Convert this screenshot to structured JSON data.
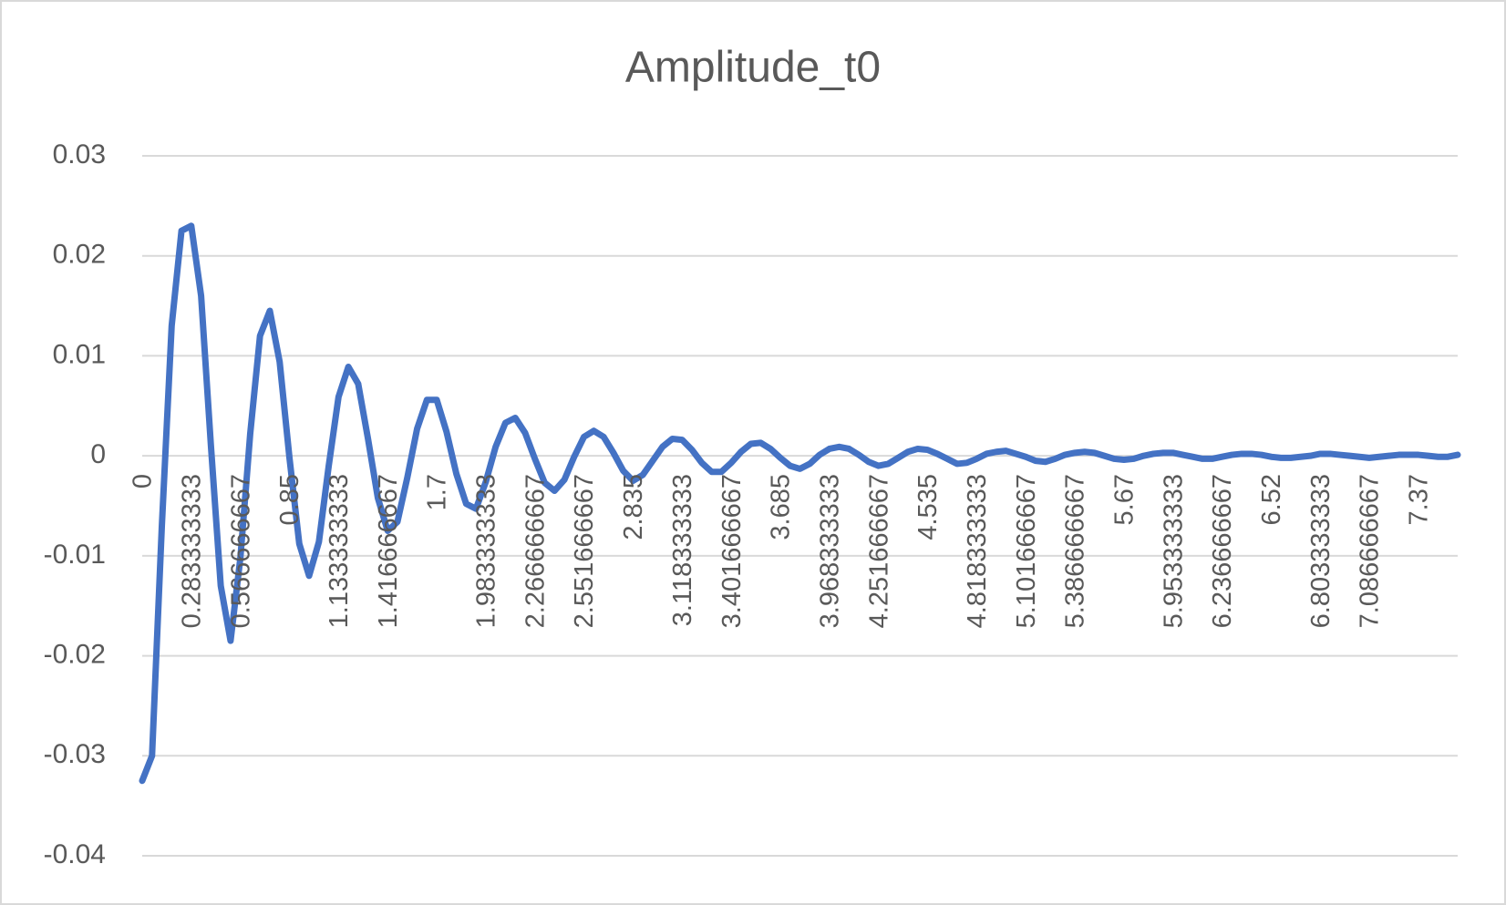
{
  "chart_data": {
    "type": "line",
    "title": "Amplitude_t0",
    "categories": [
      "0",
      null,
      null,
      null,
      null,
      "0.283333333",
      null,
      null,
      null,
      null,
      "0.566666667",
      null,
      null,
      null,
      null,
      "0.85",
      null,
      null,
      null,
      null,
      "1.133333333",
      null,
      null,
      null,
      null,
      "1.416666667",
      null,
      null,
      null,
      null,
      "1.7",
      null,
      null,
      null,
      null,
      "1.983333333",
      null,
      null,
      null,
      null,
      "2.266666667",
      null,
      null,
      null,
      null,
      "2.551666667",
      null,
      null,
      null,
      null,
      "2.835",
      null,
      null,
      null,
      null,
      "3.118333333",
      null,
      null,
      null,
      null,
      "3.401666667",
      null,
      null,
      null,
      null,
      "3.685",
      null,
      null,
      null,
      null,
      "3.968333333",
      null,
      null,
      null,
      null,
      "4.251666667",
      null,
      null,
      null,
      null,
      "4.535",
      null,
      null,
      null,
      null,
      "4.818333333",
      null,
      null,
      null,
      null,
      "5.101666667",
      null,
      null,
      null,
      null,
      "5.386666667",
      null,
      null,
      null,
      null,
      "5.67",
      null,
      null,
      null,
      null,
      "5.953333333",
      null,
      null,
      null,
      null,
      "6.236666667",
      null,
      null,
      null,
      null,
      "6.52",
      null,
      null,
      null,
      null,
      "6.803333333",
      null,
      null,
      null,
      null,
      "7.086666667",
      null,
      null,
      null,
      null,
      "7.37",
      null,
      null,
      null,
      null
    ],
    "values": [
      -0.0325,
      -0.03,
      -0.007,
      0.013,
      0.0225,
      0.023,
      0.016,
      0.001,
      -0.013,
      -0.0185,
      -0.0102,
      0.0022,
      0.012,
      0.0145,
      0.0094,
      -0.0002,
      -0.0088,
      -0.012,
      -0.0086,
      -0.001,
      0.0059,
      0.0089,
      0.0072,
      0.0017,
      -0.0042,
      -0.0075,
      -0.0066,
      -0.0022,
      0.0027,
      0.0056,
      0.0056,
      0.0024,
      -0.0018,
      -0.0048,
      -0.0053,
      -0.0026,
      0.0009,
      0.0033,
      0.0038,
      0.0023,
      -0.0003,
      -0.0027,
      -0.0035,
      -0.0024,
      -0.0001,
      0.0019,
      0.0025,
      0.0019,
      0.0003,
      -0.0015,
      -0.0025,
      -0.0019,
      -0.0005,
      0.0009,
      0.0017,
      0.0016,
      0.0006,
      -0.0007,
      -0.0016,
      -0.0016,
      -0.0007,
      0.0004,
      0.0012,
      0.0013,
      0.0007,
      -0.0002,
      -0.001,
      -0.0013,
      -0.0008,
      0.0001,
      0.0007,
      0.0009,
      0.0007,
      0.0001,
      -0.0006,
      -0.001,
      -0.0008,
      -0.0002,
      0.0004,
      0.0007,
      0.0006,
      0.0002,
      -0.0003,
      -0.0008,
      -0.0007,
      -0.0003,
      0.0002,
      0.0004,
      0.0005,
      0.0002,
      -0.0001,
      -0.0005,
      -0.0006,
      -0.0003,
      0.0001,
      0.0003,
      0.0004,
      0.0003,
      0,
      -0.0003,
      -0.0004,
      -0.0003,
      0,
      0.0002,
      0.0003,
      0.0003,
      0.0001,
      -0.0001,
      -0.0003,
      -0.0003,
      -0.0001,
      0.0001,
      0.0002,
      0.0002,
      0.0001,
      -0.0001,
      -0.0002,
      -0.0002,
      -0.0001,
      0,
      0.0002,
      0.0002,
      0.0001,
      0,
      -0.0001,
      -0.0002,
      -0.0001,
      0,
      0.0001,
      0.0001,
      0.0001,
      0,
      -0.0001,
      -0.0001,
      0.0001
    ],
    "color": "#4472c4",
    "ylim": [
      -0.04,
      0.03
    ],
    "yticks": [
      -0.04,
      -0.03,
      -0.02,
      -0.01,
      0,
      0.01,
      0.02,
      0.03
    ],
    "grid": true
  }
}
